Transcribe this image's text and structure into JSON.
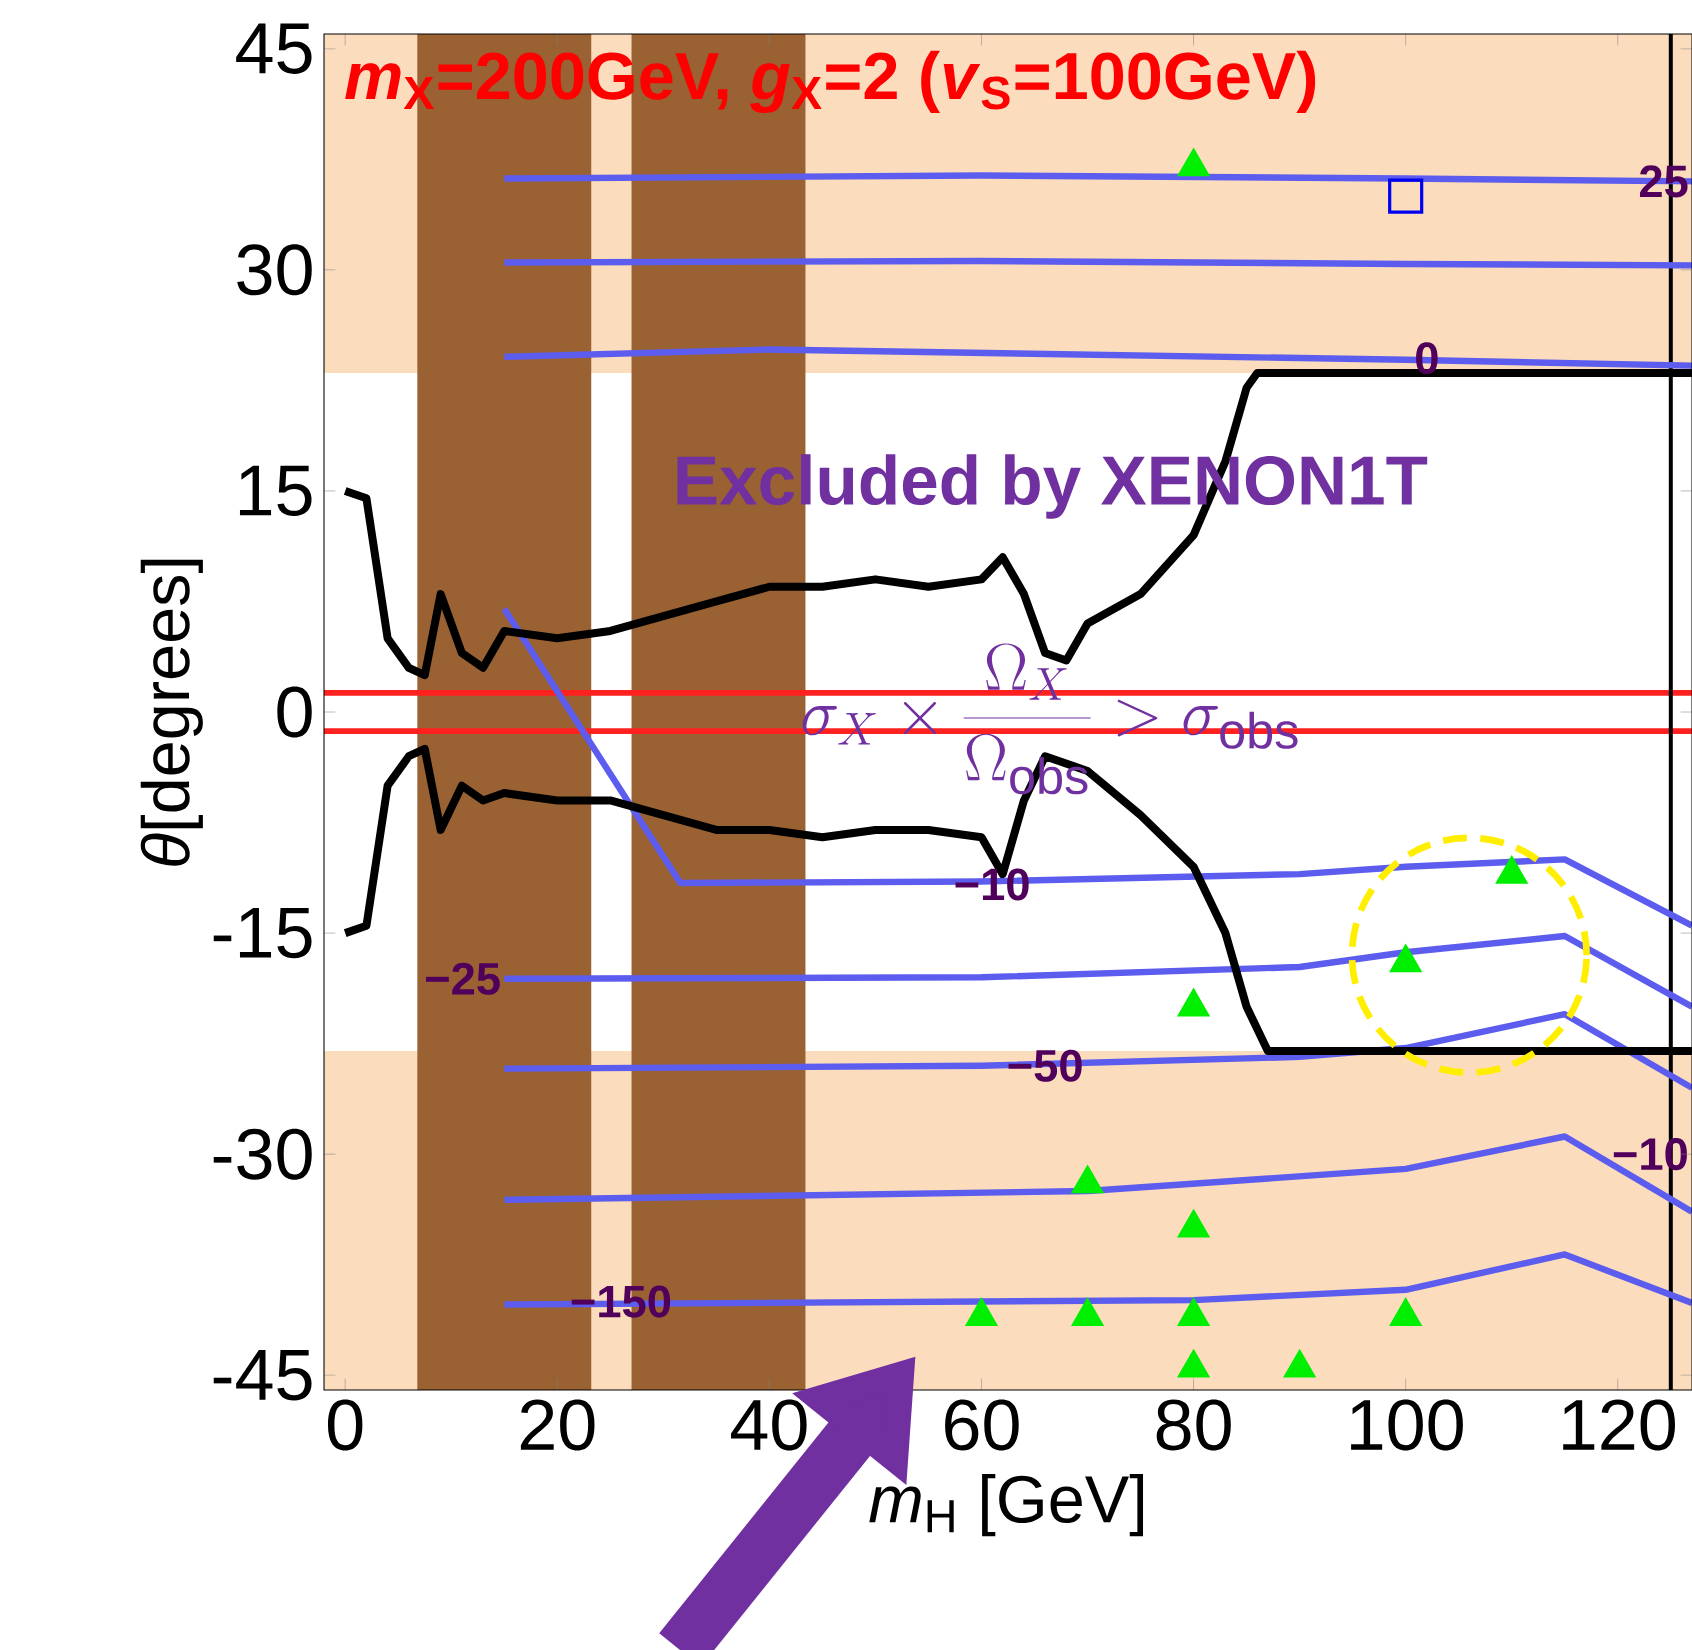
{
  "chart_data": {
    "type": "line",
    "title": "*m*$_{X}$=200GeV, *g*$_{X}$=2 (*v*$_{S}$=100GeV)",
    "xlabel": "*m*$_{H}$ [GeV]",
    "ylabel": "*θ*[degrees]",
    "xlim": [
      -2,
      127
    ],
    "ylim": [
      -46,
      46
    ],
    "xticks": [
      0,
      20,
      40,
      60,
      80,
      100,
      120
    ],
    "yticks": [
      -45,
      -30,
      -15,
      0,
      15,
      30,
      45
    ],
    "series": [
      {
        "color": "#5c5cee",
        "x": [
          15,
          60,
          100,
          127
        ],
        "values": [
          36.2,
          36.4,
          36.2,
          36.0
        ]
      },
      {
        "color": "#5c5cee",
        "x": [
          15,
          60,
          100,
          127
        ],
        "values": [
          30.5,
          30.6,
          30.4,
          30.3
        ]
      },
      {
        "color": "#5c5cee",
        "x": [
          15,
          40,
          100,
          127
        ],
        "values": [
          24.1,
          24.6,
          23.9,
          23.5
        ]
      },
      {
        "color": "#5c5cee",
        "x": [
          15,
          31.6,
          60,
          90,
          100,
          115,
          127
        ],
        "values": [
          7,
          -11.6,
          -11.5,
          -11,
          -10.5,
          -10,
          -14.5
        ]
      },
      {
        "color": "#5c5cee",
        "x": [
          15,
          60,
          90,
          100,
          115,
          127
        ],
        "values": [
          -18.1,
          -18,
          -17.3,
          -16.3,
          -15.2,
          -20
        ]
      },
      {
        "color": "#5c5cee",
        "x": [
          15,
          60,
          90,
          100,
          115,
          127
        ],
        "values": [
          -24.2,
          -24,
          -23.4,
          -22.8,
          -20.5,
          -25.5
        ]
      },
      {
        "color": "#5c5cee",
        "x": [
          15,
          70,
          100,
          115,
          127
        ],
        "values": [
          -33.1,
          -32.5,
          -31,
          -28.8,
          -33.9
        ]
      },
      {
        "color": "#5c5cee",
        "x": [
          15,
          80,
          100,
          115,
          127
        ],
        "values": [
          -40.2,
          -39.9,
          -39.2,
          -36.8,
          -40.1
        ]
      },
      {
        "color": "#000000",
        "x": [
          0,
          2,
          4,
          6,
          7.5,
          9,
          11,
          13,
          15,
          20,
          25,
          30,
          35,
          40,
          45,
          50,
          55,
          60,
          62,
          64,
          66,
          68,
          70,
          75,
          80,
          83,
          85,
          86,
          127
        ],
        "values": [
          15,
          14.5,
          5,
          3,
          2.5,
          8,
          4,
          3,
          5.5,
          5,
          5.5,
          6.5,
          7.5,
          8.5,
          8.5,
          9,
          8.5,
          9,
          10.5,
          8,
          4,
          3.5,
          6,
          8,
          12,
          17,
          22,
          23,
          23
        ]
      },
      {
        "color": "#000000",
        "x": [
          0,
          2,
          4,
          6,
          7.5,
          9,
          11,
          13,
          15,
          20,
          25,
          30,
          35,
          40,
          45,
          50,
          55,
          60,
          62,
          64,
          66,
          70,
          75,
          80,
          83,
          85,
          87,
          127
        ],
        "values": [
          -15,
          -14.5,
          -5,
          -3,
          -2.5,
          -8,
          -5,
          -6,
          -5.5,
          -6,
          -6,
          -7,
          -8,
          -8,
          -8.5,
          -8,
          -8,
          -8.5,
          -11,
          -6,
          -3,
          -4,
          -7,
          -10.5,
          -15,
          -20,
          -23,
          -23
        ]
      },
      {
        "type": "scatter",
        "marker": "triangle",
        "color": "#00ee00",
        "x": [
          80,
          80,
          80,
          80,
          80,
          70,
          90,
          100,
          100,
          110
        ],
        "values": [
          37,
          -20,
          -35,
          -41,
          -44.5,
          -41,
          -44.5,
          -41,
          -17,
          -11
        ]
      },
      {
        "type": "scatter",
        "marker": "triangle",
        "color": "#00ee00",
        "x": [
          70,
          60
        ],
        "values": [
          -32,
          -41
        ]
      },
      {
        "type": "scatter",
        "marker": "square",
        "color": "#0000ee",
        "x": [
          100
        ],
        "values": [
          35
        ]
      }
    ],
    "bands": [
      {
        "axis": "y",
        "from": 23,
        "to": 46,
        "color": "#fbdcbc"
      },
      {
        "axis": "y",
        "from": -46,
        "to": -23,
        "color": "#fbdcbc"
      },
      {
        "axis": "x",
        "from": 6.8,
        "to": 23.2,
        "color": "#9a6232"
      },
      {
        "axis": "x",
        "from": 27,
        "to": 43.4,
        "color": "#9a6232"
      }
    ],
    "ref_lines": [
      {
        "axis": "y",
        "value": 1.3,
        "color": "#ff2020"
      },
      {
        "axis": "y",
        "value": -1.3,
        "color": "#ff2020"
      },
      {
        "axis": "x",
        "value": 125,
        "color": "#000000"
      }
    ],
    "annotations": [
      "Excluded by XENON1T",
      "\\sigma_X \\times \\frac{\\Omega_X}{\\Omega_\\mathrm{obs}} > \\sigma_\\mathrm{obs}",
      {
        "text": "25",
        "x": 127,
        "y": 36
      },
      {
        "text": "0",
        "x": 102,
        "y": 24
      },
      {
        "text": "−10",
        "x": 61,
        "y": -11.7
      },
      {
        "text": "−25",
        "x": 15,
        "y": -18.1
      },
      {
        "text": "−50",
        "x": 66,
        "y": -24
      },
      {
        "text": "−150",
        "x": 26,
        "y": -40
      },
      {
        "text": "−10",
        "x": 127,
        "y": -30
      }
    ]
  }
}
